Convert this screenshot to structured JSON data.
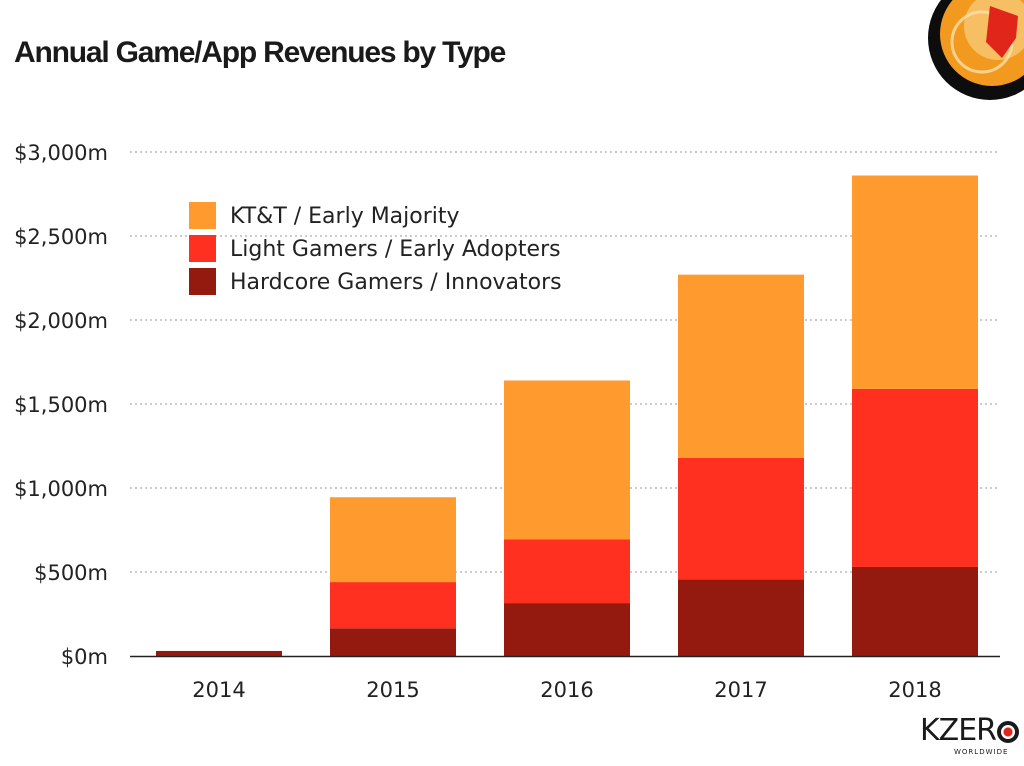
{
  "chart_data": {
    "type": "bar",
    "stacked": true,
    "title": "Annual Game/App Revenues by Type",
    "xlabel": "",
    "ylabel": "",
    "categories": [
      "2014",
      "2015",
      "2016",
      "2017",
      "2018"
    ],
    "ylim": [
      0,
      3000
    ],
    "yticks": [
      0,
      500,
      1000,
      1500,
      2000,
      2500,
      3000
    ],
    "ytick_labels": [
      "$0m",
      "$500m",
      "$1,000m",
      "$1,500m",
      "$2,000m",
      "$2,500m",
      "$3,000m"
    ],
    "grid": true,
    "legend_position": "top-left",
    "series": [
      {
        "name": "Hardcore Gamers / Innovators",
        "color": "#941A0F",
        "values": [
          30,
          165,
          315,
          455,
          530
        ]
      },
      {
        "name": "Light Gamers / Early Adopters",
        "color": "#FF3020",
        "values": [
          0,
          275,
          380,
          725,
          1060
        ]
      },
      {
        "name": "KT&T / Early Majority",
        "color": "#FF9A2E",
        "values": [
          0,
          505,
          945,
          1090,
          1270
        ]
      }
    ],
    "legend_order": [
      2,
      1,
      0
    ]
  },
  "brand": {
    "name": "KZER",
    "subtitle": "WORLDWIDE"
  }
}
